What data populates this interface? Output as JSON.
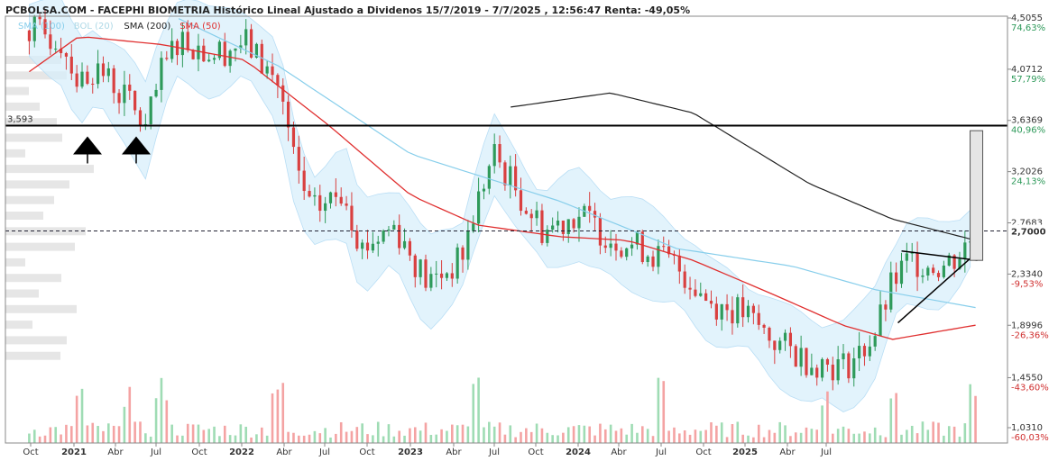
{
  "chart_data": {
    "type": "candlestick",
    "title": "PCBOLSA.COM - FACEPHI BIOMETRIA Histórico Lineal Ajustado a Dividenos 15/7/2019 - 7/7/2025 , 12:56:47 Renta: -49,05%",
    "legend": [
      {
        "label": "SMA (100)",
        "color": "#87ceeb"
      },
      {
        "label": "BOL (20)",
        "color": "#add8e6"
      },
      {
        "label": "SMA (200)",
        "color": "#222222"
      },
      {
        "label": "SMA (50)",
        "color": "#e03030"
      }
    ],
    "price_ticks": [
      {
        "price": "4,5055",
        "pct": "74,63%",
        "pct_color": "#2e9a5a"
      },
      {
        "price": "4,0712",
        "pct": "57,79%",
        "pct_color": "#2e9a5a"
      },
      {
        "price": "3,6369",
        "pct": "40,96%",
        "pct_color": "#2e9a5a"
      },
      {
        "price": "3,2026",
        "pct": "24,13%",
        "pct_color": "#2e9a5a"
      },
      {
        "price": "2,7683",
        "pct": "",
        "pct_color": "#2e9a5a"
      },
      {
        "price": "2,3340",
        "pct": "-9,53%",
        "pct_color": "#d03030"
      },
      {
        "price": "1,8996",
        "pct": "-26,36%",
        "pct_color": "#d03030"
      },
      {
        "price": "1,4550",
        "pct": "-43,60%",
        "pct_color": "#d03030"
      },
      {
        "price": "1,0310",
        "pct": "-60,03%",
        "pct_color": "#d03030"
      }
    ],
    "ylim": [
      1.031,
      4.5055
    ],
    "current_price": "2,7000",
    "current_value": 2.7,
    "resistance_label": "3,593",
    "resistance_value": 3.593,
    "x_labels": [
      {
        "label": "Oct",
        "bold": false
      },
      {
        "label": "2021",
        "bold": true
      },
      {
        "label": "Abr",
        "bold": false
      },
      {
        "label": "Jul",
        "bold": false
      },
      {
        "label": "Oct",
        "bold": false
      },
      {
        "label": "2022",
        "bold": true
      },
      {
        "label": "Abr",
        "bold": false
      },
      {
        "label": "Jul",
        "bold": false
      },
      {
        "label": "Oct",
        "bold": false
      },
      {
        "label": "2023",
        "bold": true
      },
      {
        "label": "Abr",
        "bold": false
      },
      {
        "label": "Jul",
        "bold": false
      },
      {
        "label": "Oct",
        "bold": false
      },
      {
        "label": "2024",
        "bold": true
      },
      {
        "label": "Abr",
        "bold": false
      },
      {
        "label": "Jul",
        "bold": false
      },
      {
        "label": "Oct",
        "bold": false
      },
      {
        "label": "2025",
        "bold": true
      },
      {
        "label": "Abr",
        "bold": false
      },
      {
        "label": "Jul",
        "bold": false
      }
    ],
    "price_path": [
      {
        "t": "2020-10",
        "v": 4.4
      },
      {
        "t": "2020-12",
        "v": 4.3
      },
      {
        "t": "2021-01",
        "v": 3.95
      },
      {
        "t": "2021-02",
        "v": 4.1
      },
      {
        "t": "2021-04",
        "v": 3.8
      },
      {
        "t": "2021-05",
        "v": 3.55
      },
      {
        "t": "2021-06",
        "v": 4.05
      },
      {
        "t": "2021-07",
        "v": 4.35
      },
      {
        "t": "2021-09",
        "v": 4.2
      },
      {
        "t": "2021-11",
        "v": 4.3
      },
      {
        "t": "2022-01",
        "v": 3.95
      },
      {
        "t": "2022-02",
        "v": 3.25
      },
      {
        "t": "2022-03",
        "v": 2.85
      },
      {
        "t": "2022-05",
        "v": 3.05
      },
      {
        "t": "2022-06",
        "v": 2.55
      },
      {
        "t": "2022-08",
        "v": 2.75
      },
      {
        "t": "2022-10",
        "v": 2.25
      },
      {
        "t": "2022-12",
        "v": 2.45
      },
      {
        "t": "2023-01",
        "v": 2.95
      },
      {
        "t": "2023-02",
        "v": 3.35
      },
      {
        "t": "2023-04",
        "v": 2.9
      },
      {
        "t": "2023-05",
        "v": 2.7
      },
      {
        "t": "2023-07",
        "v": 2.85
      },
      {
        "t": "2023-09",
        "v": 2.65
      },
      {
        "t": "2023-11",
        "v": 2.55
      },
      {
        "t": "2024-01",
        "v": 2.4
      },
      {
        "t": "2024-03",
        "v": 2.1
      },
      {
        "t": "2024-05",
        "v": 2.0
      },
      {
        "t": "2024-07",
        "v": 1.75
      },
      {
        "t": "2024-09",
        "v": 1.6
      },
      {
        "t": "2024-11",
        "v": 1.55
      },
      {
        "t": "2024-12",
        "v": 1.65
      },
      {
        "t": "2025-01",
        "v": 1.85
      },
      {
        "t": "2025-02",
        "v": 2.25
      },
      {
        "t": "2025-03",
        "v": 2.45
      },
      {
        "t": "2025-05",
        "v": 2.4
      },
      {
        "t": "2025-06",
        "v": 2.5
      },
      {
        "t": "2025-07",
        "v": 2.7
      }
    ],
    "sma50": [
      {
        "t": "2020-10",
        "v": 4.05
      },
      {
        "t": "2021-01",
        "v": 4.35
      },
      {
        "t": "2021-06",
        "v": 4.28
      },
      {
        "t": "2021-11",
        "v": 4.15
      },
      {
        "t": "2022-04",
        "v": 3.6
      },
      {
        "t": "2022-09",
        "v": 3.0
      },
      {
        "t": "2023-01",
        "v": 2.75
      },
      {
        "t": "2023-06",
        "v": 2.65
      },
      {
        "t": "2023-10",
        "v": 2.62
      },
      {
        "t": "2024-02",
        "v": 2.45
      },
      {
        "t": "2024-07",
        "v": 2.15
      },
      {
        "t": "2024-11",
        "v": 1.9
      },
      {
        "t": "2025-02",
        "v": 1.78
      },
      {
        "t": "2025-07",
        "v": 1.9
      }
    ],
    "sma100": [
      {
        "t": "2021-07",
        "v": 4.5
      },
      {
        "t": "2022-01",
        "v": 4.1
      },
      {
        "t": "2022-09",
        "v": 3.35
      },
      {
        "t": "2023-06",
        "v": 2.95
      },
      {
        "t": "2024-01",
        "v": 2.55
      },
      {
        "t": "2024-08",
        "v": 2.4
      },
      {
        "t": "2025-01",
        "v": 2.2
      },
      {
        "t": "2025-07",
        "v": 2.05
      }
    ],
    "sma200": [
      {
        "t": "2023-03",
        "v": 3.75
      },
      {
        "t": "2023-09",
        "v": 3.87
      },
      {
        "t": "2024-02",
        "v": 3.7
      },
      {
        "t": "2024-09",
        "v": 3.1
      },
      {
        "t": "2025-02",
        "v": 2.8
      },
      {
        "t": "2025-07",
        "v": 2.62
      }
    ],
    "volume_profile_rows": 20,
    "volume_bars_count": 180,
    "volume_spikes": [
      "2021-01",
      "2021-04",
      "2021-06",
      "2022-01",
      "2023-01",
      "2023-12",
      "2024-10",
      "2025-02",
      "2025-07"
    ]
  }
}
